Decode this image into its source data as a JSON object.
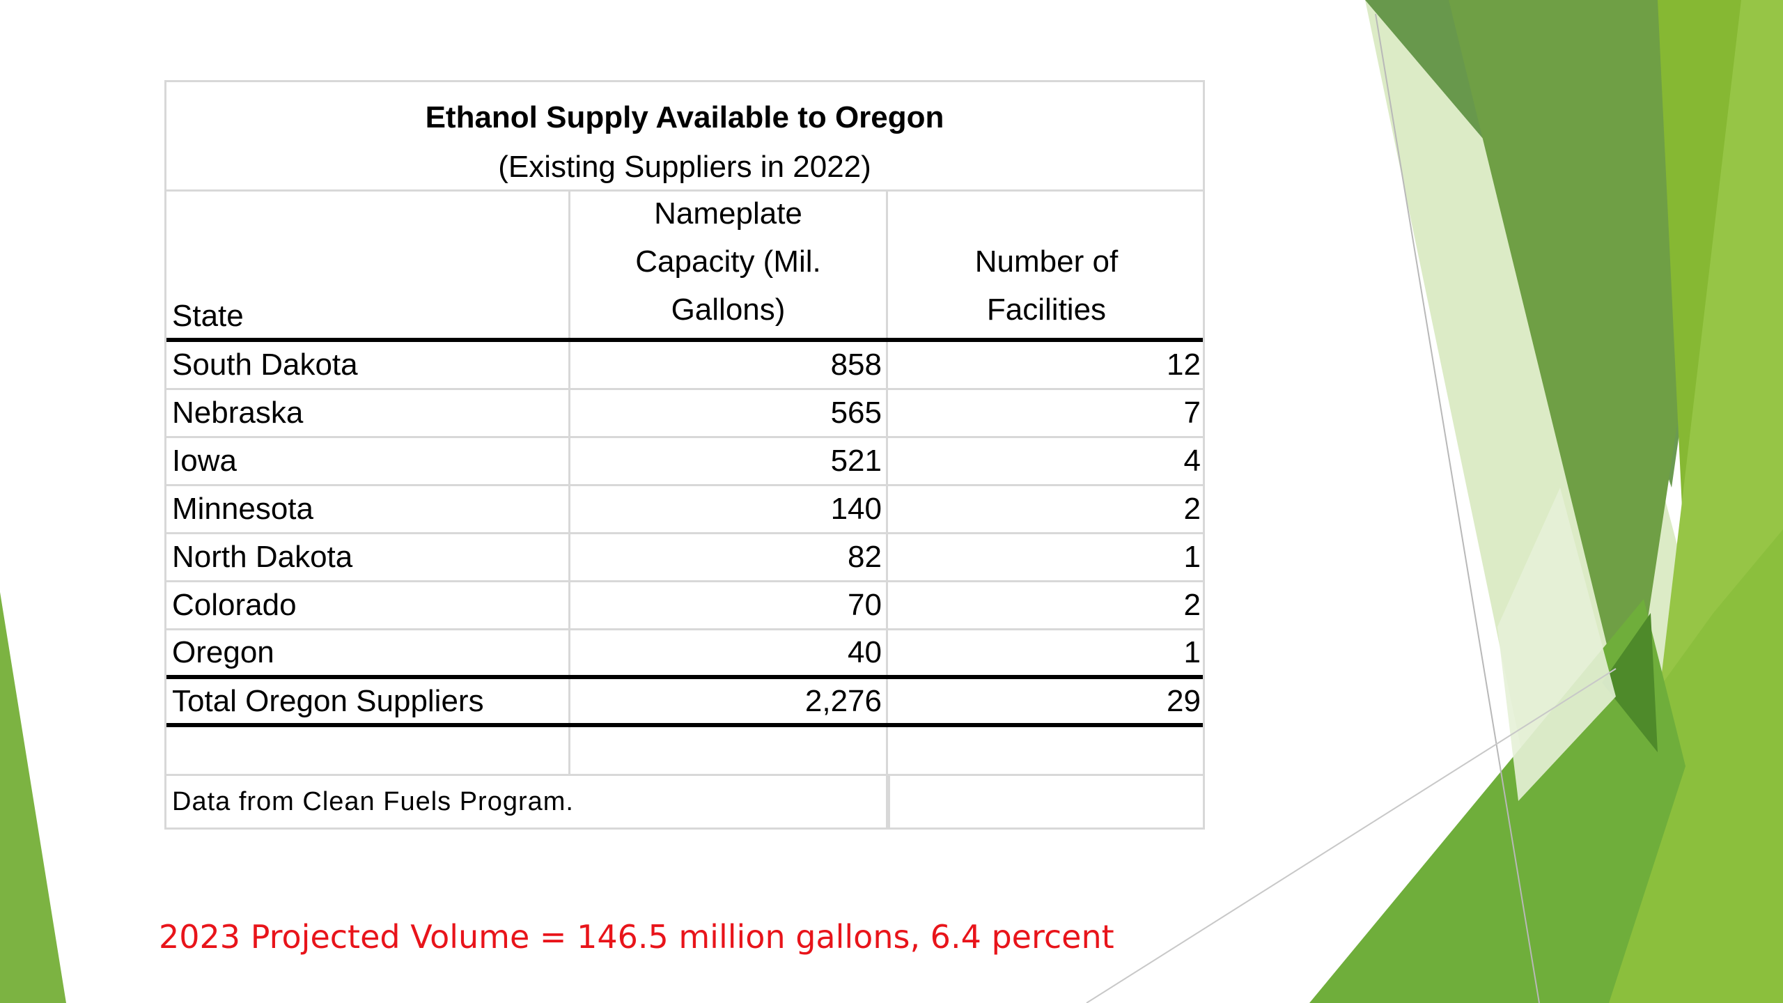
{
  "table": {
    "title": "Ethanol Supply Available to Oregon",
    "subtitle": "(Existing Suppliers in 2022)",
    "headers": {
      "state": "State",
      "capacity_line1": "Nameplate",
      "capacity_line2": "Capacity (Mil.",
      "capacity_line3": "Gallons)",
      "facilities_line1": "Number of",
      "facilities_line2": "Facilities"
    },
    "rows": [
      {
        "state": "South Dakota",
        "capacity": "858",
        "facilities": "12"
      },
      {
        "state": "Nebraska",
        "capacity": "565",
        "facilities": "7"
      },
      {
        "state": "Iowa",
        "capacity": "521",
        "facilities": "4"
      },
      {
        "state": "Minnesota",
        "capacity": "140",
        "facilities": "2"
      },
      {
        "state": "North Dakota",
        "capacity": "82",
        "facilities": "1"
      },
      {
        "state": "Colorado",
        "capacity": "70",
        "facilities": "2"
      },
      {
        "state": "Oregon",
        "capacity": "40",
        "facilities": "1"
      }
    ],
    "total": {
      "label": "Total Oregon Suppliers",
      "capacity": "2,276",
      "facilities": "29"
    },
    "note": "Data from Clean Fuels Program."
  },
  "projection": "2023 Projected Volume = 146.5 million gallons, 6.4 percent",
  "colors": {
    "accent_green": "#7ab231",
    "dark_green": "#5f8f32",
    "light_green": "#c5e0a5",
    "projection_red": "#e8141a"
  }
}
